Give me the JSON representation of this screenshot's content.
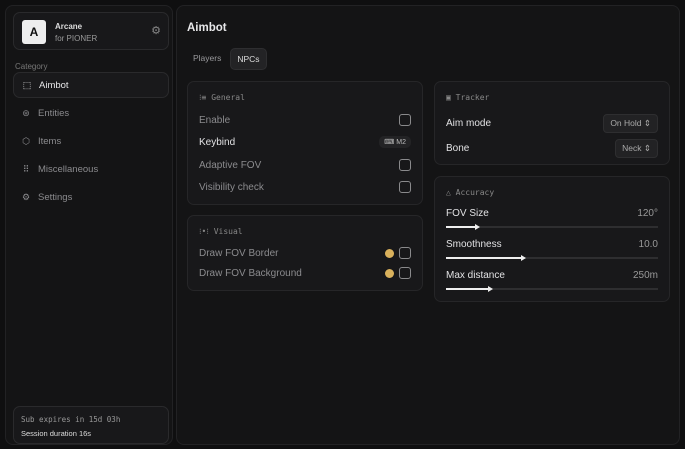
{
  "brand": {
    "name": "Arcane",
    "sub": "for PIONER",
    "logo": "A"
  },
  "sidebar": {
    "category_label": "Category",
    "items": [
      {
        "label": "Aimbot",
        "icon": "crosshair-icon",
        "active": true
      },
      {
        "label": "Entities",
        "icon": "entities-icon"
      },
      {
        "label": "Items",
        "icon": "box-icon"
      },
      {
        "label": "Miscellaneous",
        "icon": "grid-icon"
      },
      {
        "label": "Settings",
        "icon": "gear-icon"
      }
    ]
  },
  "footer": {
    "expires": "Sub expires in 15d 03h",
    "session": "Session duration 16s"
  },
  "main": {
    "title": "Aimbot",
    "tabs": [
      {
        "label": "Players"
      },
      {
        "label": "NPCs",
        "active": true
      }
    ]
  },
  "general": {
    "title": "General",
    "enable": "Enable",
    "keybind": "Keybind",
    "keybind_value": "M2",
    "adaptive": "Adaptive FOV",
    "visibility": "Visibility check"
  },
  "visual": {
    "title": "Visual",
    "border": "Draw FOV Border",
    "background": "Draw FOV Background",
    "accent": "#d9b15c"
  },
  "tracker": {
    "title": "Tracker",
    "aim_mode": "Aim mode",
    "aim_mode_value": "On Hold",
    "bone": "Bone",
    "bone_value": "Neck"
  },
  "accuracy": {
    "title": "Accuracy",
    "sliders": [
      {
        "label": "FOV Size",
        "value": "120°",
        "percent": 15
      },
      {
        "label": "Smoothness",
        "value": "10.0",
        "percent": 37
      },
      {
        "label": "Max distance",
        "value": "250m",
        "percent": 21
      }
    ]
  }
}
